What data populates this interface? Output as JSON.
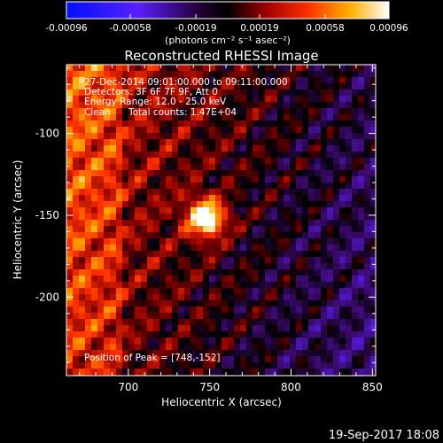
{
  "colors": {
    "background": "#000000",
    "text": "#ffffff",
    "colormap": "blue-purple-black-red-orange-yellow-white"
  },
  "colorbar": {
    "ticks": [
      "-0.00096",
      "-0.00058",
      "-0.00019",
      "0.00019",
      "0.00058",
      "0.00096"
    ],
    "range": [
      -0.00096,
      0.00096
    ]
  },
  "chart_data": {
    "type": "heatmap",
    "title": "Reconstructed RHESSI Image",
    "xlabel": "Heliocentric X (arcsec)",
    "ylabel": "Heliocentric Y (arcsec)",
    "xlim": [
      662,
      852
    ],
    "ylim": [
      -248,
      -58
    ],
    "xticks": [
      "700",
      "750",
      "800",
      "850"
    ],
    "yticks": [
      "-100",
      "-150",
      "-200"
    ],
    "grid": false,
    "colorbar_unit": "(photons cm⁻² s⁻¹ asec⁻²)",
    "peak": {
      "x": 748,
      "y": -152
    },
    "annotations": {
      "time": "27-Dec-2014 09:01:00.000 to 09:11:00.000",
      "detectors": "Detectors: 3F 6F 7F 9F, Att 0",
      "energy": "Energy Range: 12.0 - 25.0 keV",
      "method": "Clean",
      "counts": "Total counts: 1.47E+04",
      "peak_text": "Position of Peak = [748,-152]"
    }
  },
  "footer": {
    "timestamp": "19-Sep-2017 18:08"
  }
}
